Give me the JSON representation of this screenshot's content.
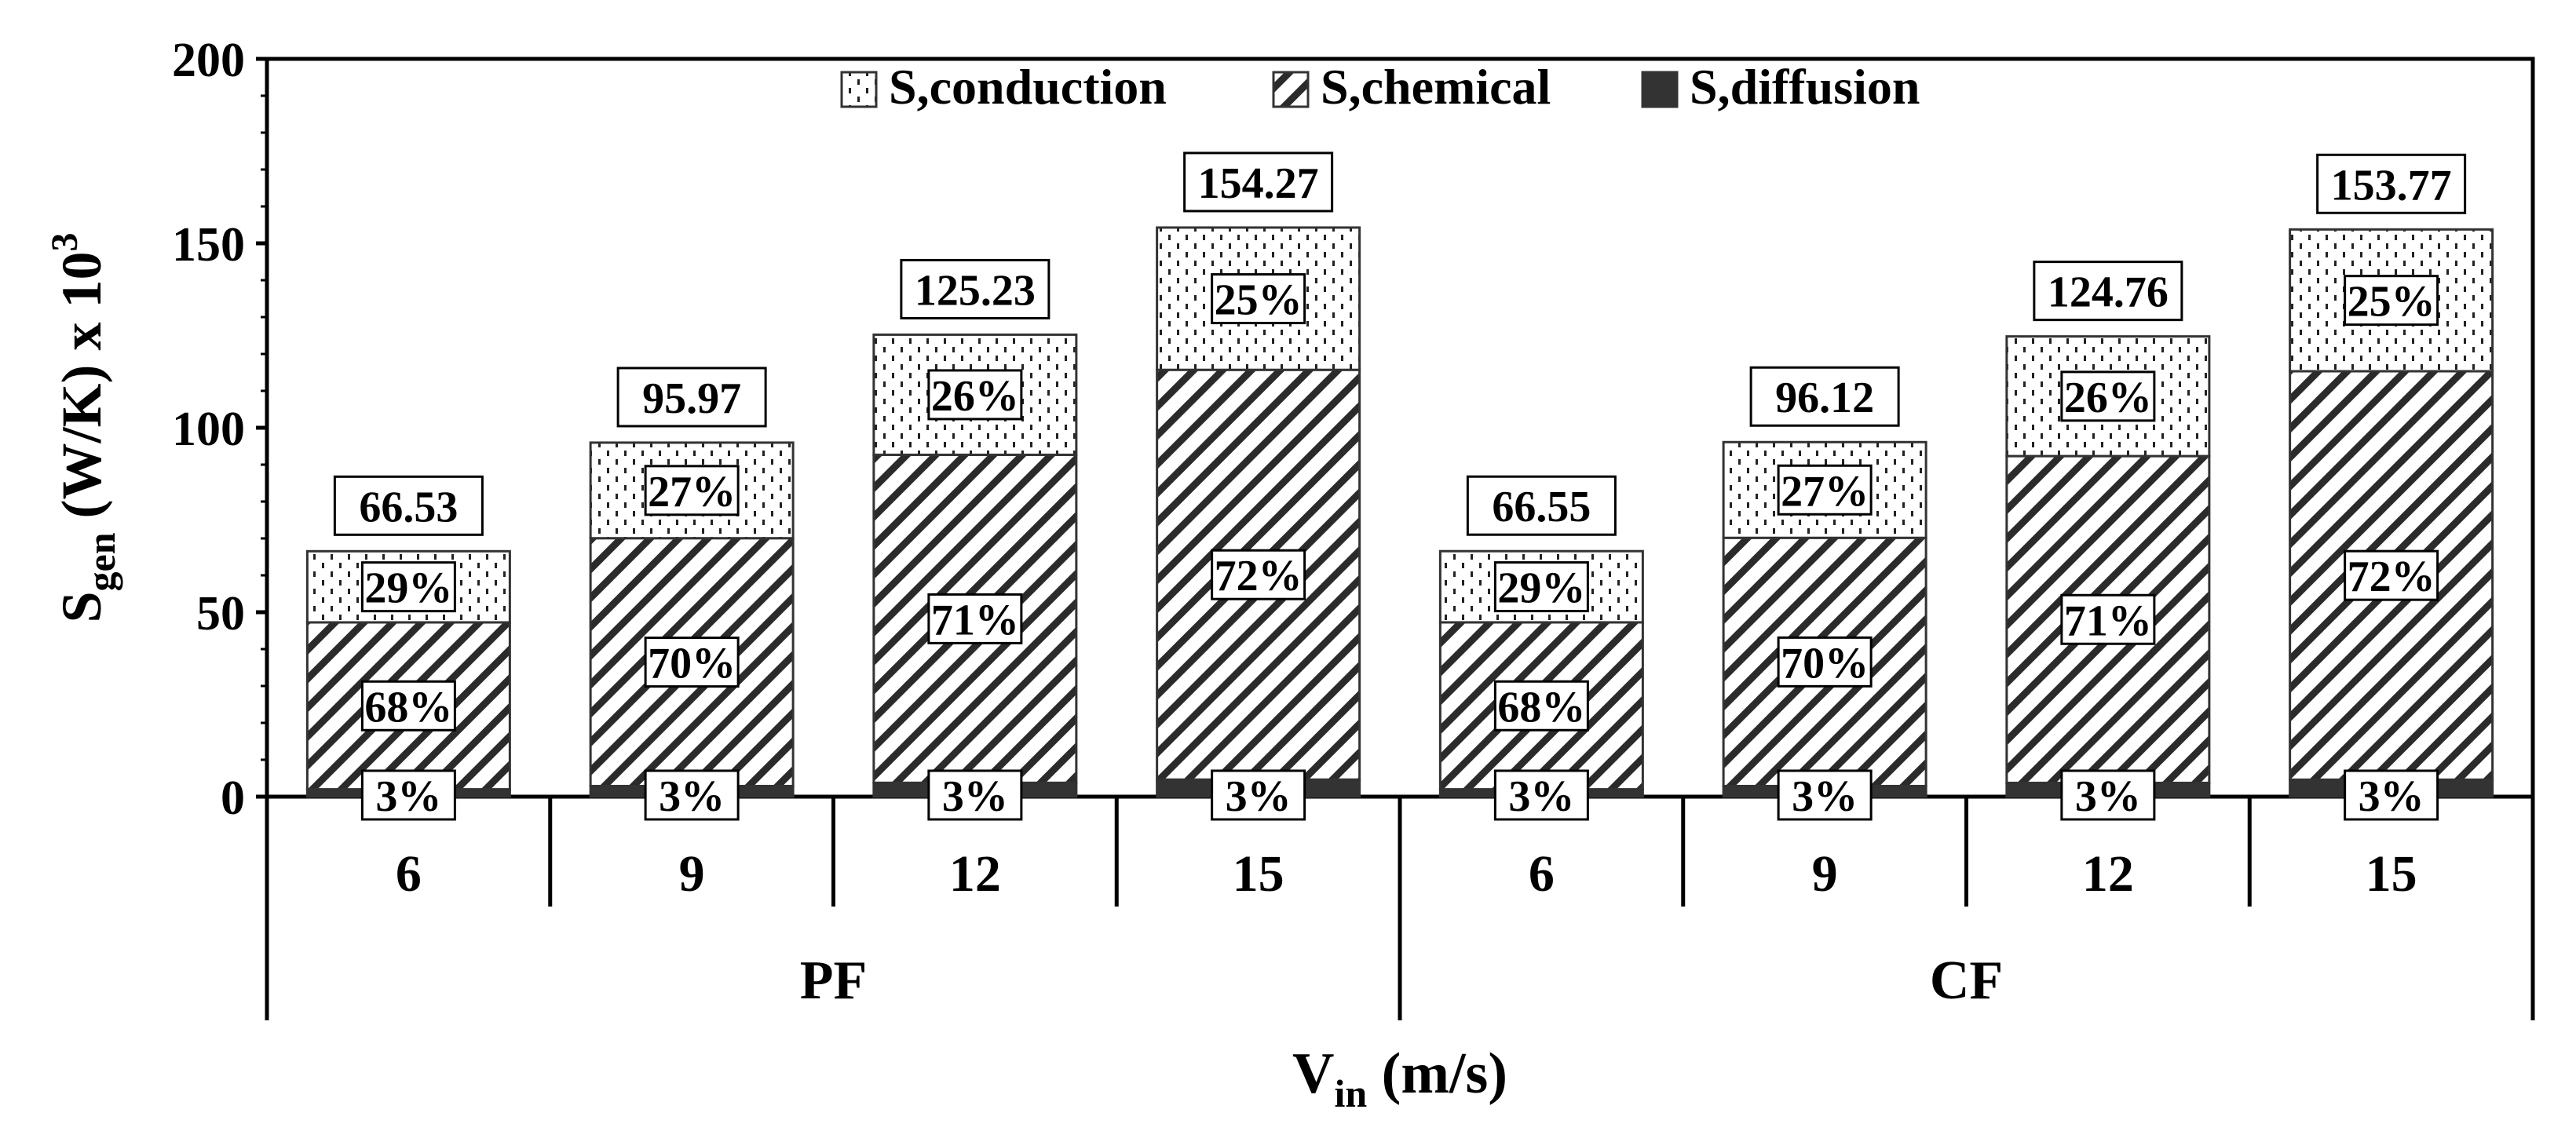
{
  "chart_data": {
    "type": "bar",
    "stacked": true,
    "groups": [
      {
        "label": "PF",
        "categories": [
          "6",
          "9",
          "12",
          "15"
        ]
      },
      {
        "label": "CF",
        "categories": [
          "6",
          "9",
          "12",
          "15"
        ]
      }
    ],
    "totals": [
      66.53,
      95.97,
      125.23,
      154.27,
      66.55,
      96.12,
      124.76,
      153.77
    ],
    "series": [
      {
        "name": "S,diffusion",
        "pattern": "solid-dark",
        "color": "#333333",
        "values": [
          2.0,
          2.88,
          3.76,
          4.63,
          2.0,
          2.88,
          3.74,
          4.61
        ],
        "percent_labels": [
          "3%",
          "3%",
          "3%",
          "3%",
          "3%",
          "3%",
          "3%",
          "3%"
        ]
      },
      {
        "name": "S,chemical",
        "pattern": "diagonal-hatch",
        "color": "#333333",
        "values": [
          45.24,
          67.18,
          88.91,
          111.07,
          45.25,
          67.28,
          88.58,
          110.71
        ],
        "percent_labels": [
          "68%",
          "70%",
          "71%",
          "72%",
          "68%",
          "70%",
          "71%",
          "72%"
        ]
      },
      {
        "name": "S,conduction",
        "pattern": "dotted",
        "color": "#333333",
        "values": [
          19.29,
          25.91,
          32.56,
          38.57,
          19.3,
          25.95,
          32.44,
          38.44
        ],
        "percent_labels": [
          "29%",
          "27%",
          "26%",
          "25%",
          "29%",
          "27%",
          "26%",
          "25%"
        ]
      }
    ],
    "legend_order": [
      "S,conduction",
      "S,chemical",
      "S,diffusion"
    ],
    "legend_position": "top-center",
    "total_labels": [
      "66.53",
      "95.97",
      "125.23",
      "154.27",
      "66.55",
      "96.12",
      "124.76",
      "153.77"
    ],
    "ylabel": {
      "main": "S",
      "sub": "gen",
      "rest": " (W/K) x 10",
      "sup": "3"
    },
    "xlabel": {
      "main": "V",
      "sub": "in",
      "rest": " (m/s)"
    },
    "ylim": [
      0,
      200
    ],
    "yticks": [
      "0",
      "50",
      "100",
      "150",
      "200"
    ],
    "ytick_values": [
      0,
      50,
      100,
      150,
      200
    ],
    "grid": false
  }
}
